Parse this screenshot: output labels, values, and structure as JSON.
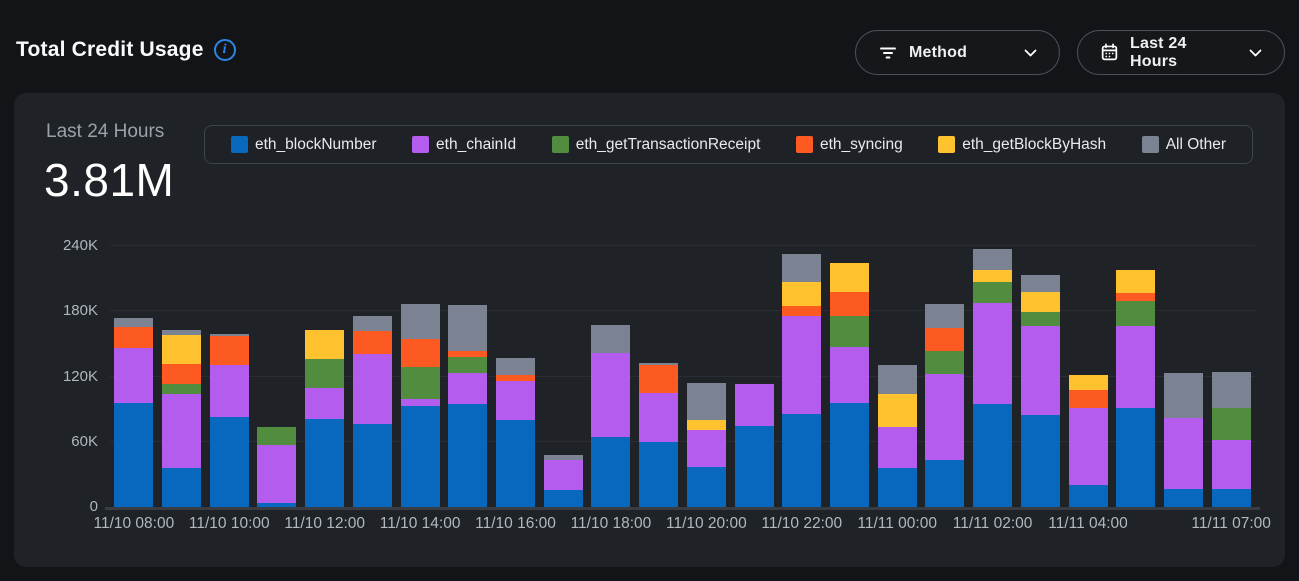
{
  "header": {
    "title": "Total Credit Usage",
    "info_icon": "i",
    "method_dropdown": {
      "label": "Method"
    },
    "time_dropdown": {
      "label": "Last 24 Hours"
    }
  },
  "summary": {
    "period_label": "Last 24 Hours",
    "total_value": "3.81M"
  },
  "colors": {
    "accent_blue": "#2e86e4",
    "card_bg": "#1f2226",
    "page_bg": "#121418"
  },
  "chart_data": {
    "type": "bar",
    "stacked": true,
    "title": "Total Credit Usage - Last 24 Hours",
    "xlabel": "",
    "ylabel": "",
    "ylim": [
      0,
      240000
    ],
    "grid": "horizontal",
    "legend_position": "top",
    "x": [
      "11/10 08:00",
      "11/10 09:00",
      "11/10 10:00",
      "11/10 11:00",
      "11/10 12:00",
      "11/10 13:00",
      "11/10 14:00",
      "11/10 15:00",
      "11/10 16:00",
      "11/10 17:00",
      "11/10 18:00",
      "11/10 19:00",
      "11/10 20:00",
      "11/10 21:00",
      "11/10 22:00",
      "11/10 23:00",
      "11/11 00:00",
      "11/11 01:00",
      "11/11 02:00",
      "11/11 03:00",
      "11/11 04:00",
      "11/11 05:00",
      "11/11 06:00",
      "11/11 07:00"
    ],
    "series": [
      {
        "name": "eth_blockNumber",
        "color": "#0768be",
        "values": [
          96000,
          36000,
          83000,
          4000,
          81000,
          76000,
          93000,
          95000,
          80000,
          16000,
          64000,
          60000,
          37000,
          75000,
          86000,
          96000,
          36000,
          43000,
          95000,
          85000,
          20000,
          91000,
          17000,
          17000
        ]
      },
      {
        "name": "eth_chainId",
        "color": "#b35cee",
        "values": [
          50000,
          68000,
          48000,
          53000,
          29000,
          65000,
          6000,
          28000,
          36000,
          27000,
          78000,
          45000,
          34000,
          38000,
          90000,
          51000,
          38000,
          79000,
          93000,
          82000,
          71000,
          76000,
          65000,
          45000
        ]
      },
      {
        "name": "eth_getTransactionReceipt",
        "color": "#528c3e",
        "values": [
          0,
          9000,
          0,
          17000,
          26000,
          0,
          30000,
          15000,
          0,
          0,
          0,
          0,
          0,
          0,
          0,
          29000,
          0,
          22000,
          19000,
          13000,
          0,
          23000,
          0,
          29000
        ]
      },
      {
        "name": "eth_syncing",
        "color": "#fd5a22",
        "values": [
          20000,
          19000,
          26000,
          0,
          0,
          21000,
          26000,
          6000,
          6000,
          0,
          0,
          26000,
          0,
          0,
          9000,
          22000,
          0,
          21000,
          0,
          0,
          17000,
          7000,
          0,
          0
        ]
      },
      {
        "name": "eth_getBlockByHash",
        "color": "#fdc22d",
        "values": [
          0,
          26000,
          0,
          0,
          27000,
          0,
          0,
          0,
          0,
          0,
          0,
          0,
          9000,
          0,
          22000,
          27000,
          30000,
          0,
          11000,
          18000,
          14000,
          21000,
          0,
          0
        ]
      },
      {
        "name": "All Other",
        "color": "#7b8393",
        "values": [
          8000,
          5000,
          2000,
          0,
          0,
          14000,
          32000,
          42000,
          15000,
          5000,
          26000,
          2000,
          34000,
          0,
          26000,
          0,
          27000,
          22000,
          20000,
          16000,
          0,
          0,
          41000,
          33000
        ]
      }
    ],
    "yticks": [
      {
        "value": 0,
        "label": "0"
      },
      {
        "value": 60000,
        "label": "60K"
      },
      {
        "value": 120000,
        "label": "120K"
      },
      {
        "value": 180000,
        "label": "180K"
      },
      {
        "value": 240000,
        "label": "240K"
      }
    ],
    "xticks": [
      {
        "bar_index": 0,
        "label": "11/10 08:00"
      },
      {
        "bar_index": 2,
        "label": "11/10 10:00"
      },
      {
        "bar_index": 4,
        "label": "11/10 12:00"
      },
      {
        "bar_index": 6,
        "label": "11/10 14:00"
      },
      {
        "bar_index": 8,
        "label": "11/10 16:00"
      },
      {
        "bar_index": 10,
        "label": "11/10 18:00"
      },
      {
        "bar_index": 12,
        "label": "11/10 20:00"
      },
      {
        "bar_index": 14,
        "label": "11/10 22:00"
      },
      {
        "bar_index": 16,
        "label": "11/11 00:00"
      },
      {
        "bar_index": 18,
        "label": "11/11 02:00"
      },
      {
        "bar_index": 20,
        "label": "11/11 04:00"
      },
      {
        "bar_index": 23,
        "label": "11/11 07:00"
      }
    ]
  }
}
